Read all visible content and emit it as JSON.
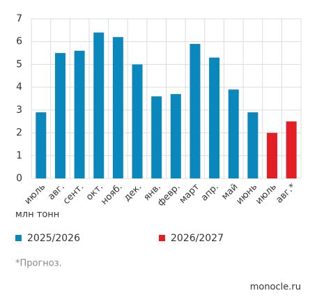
{
  "chart_data": {
    "type": "bar",
    "y_label": "млн тонн",
    "categories": [
      "июль",
      "авг.",
      "сент.",
      "окт.",
      "нояб.",
      "дек.",
      "янв.",
      "февр.",
      "март",
      "апр.",
      "май",
      "июнь",
      "июль",
      "авг.*"
    ],
    "series": [
      {
        "name": "2025/2026",
        "color": "#0a88bd",
        "values": [
          2.9,
          5.5,
          5.6,
          6.4,
          6.2,
          5.0,
          3.6,
          3.7,
          5.9,
          5.3,
          3.9,
          2.9,
          null,
          null
        ]
      },
      {
        "name": "2026/2027",
        "color": "#e31e24",
        "values": [
          null,
          null,
          null,
          null,
          null,
          null,
          null,
          null,
          null,
          null,
          null,
          null,
          2.0,
          2.5
        ]
      }
    ],
    "ylim": [
      0,
      7
    ],
    "yticks": [
      0,
      1,
      2,
      3,
      4,
      5,
      6,
      7
    ],
    "grid": true,
    "note": "*Прогноз.",
    "source": "monocle.ru"
  }
}
